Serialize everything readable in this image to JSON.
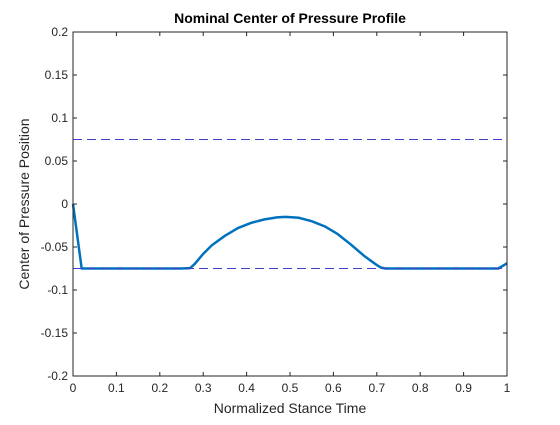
{
  "chart_data": {
    "type": "line",
    "title": "Nominal Center of Pressure Profile",
    "xlabel": "Normalized Stance Time",
    "ylabel": "Center of Pressure Position",
    "xlim": [
      0,
      1
    ],
    "ylim": [
      -0.2,
      0.2
    ],
    "xticks": [
      0,
      0.1,
      0.2,
      0.3,
      0.4,
      0.5,
      0.6,
      0.7,
      0.8,
      0.9,
      1
    ],
    "xtick_labels": [
      "0",
      "0.1",
      "0.2",
      "0.3",
      "0.4",
      "0.5",
      "0.6",
      "0.7",
      "0.8",
      "0.9",
      "1"
    ],
    "yticks": [
      -0.2,
      -0.15,
      -0.1,
      -0.05,
      0,
      0.05,
      0.1,
      0.15,
      0.2
    ],
    "ytick_labels": [
      "-0.2",
      "-0.15",
      "-0.1",
      "-0.05",
      "0",
      "0.05",
      "0.1",
      "0.15",
      "0.2"
    ],
    "grid": false,
    "series": [
      {
        "color": "#0072BD",
        "style": "solid",
        "x": [
          0,
          0.02,
          0.05,
          0.1,
          0.15,
          0.2,
          0.25,
          0.27,
          0.28,
          0.3,
          0.32,
          0.35,
          0.38,
          0.41,
          0.44,
          0.47,
          0.49,
          0.52,
          0.55,
          0.58,
          0.61,
          0.64,
          0.67,
          0.7,
          0.71,
          0.72,
          0.75,
          0.8,
          0.85,
          0.9,
          0.95,
          0.98,
          1
        ],
        "y": [
          0,
          -0.075,
          -0.075,
          -0.075,
          -0.075,
          -0.075,
          -0.075,
          -0.0745,
          -0.07,
          -0.058,
          -0.048,
          -0.037,
          -0.028,
          -0.022,
          -0.018,
          -0.0155,
          -0.015,
          -0.016,
          -0.02,
          -0.026,
          -0.035,
          -0.047,
          -0.06,
          -0.071,
          -0.074,
          -0.075,
          -0.075,
          -0.075,
          -0.075,
          -0.075,
          -0.075,
          -0.075,
          -0.069
        ]
      },
      {
        "color": "#4040CC",
        "style": "dashed",
        "x": [
          0,
          1
        ],
        "y": [
          0.075,
          0.075
        ]
      },
      {
        "color": "#4040CC",
        "style": "dashed",
        "x": [
          0,
          1
        ],
        "y": [
          -0.075,
          -0.075
        ]
      }
    ]
  }
}
